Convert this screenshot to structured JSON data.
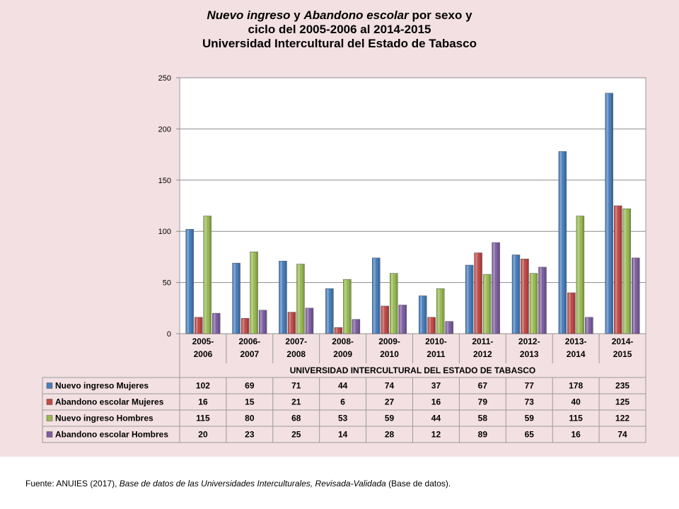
{
  "title": {
    "line1_part1": "Nuevo ingreso",
    "line1_part2": " y ",
    "line1_part3": "Abandono escolar",
    "line1_part4": " por sexo y",
    "line2": "ciclo del 2005-2006 al 2014-2015",
    "line3": "Universidad Intercultural del Estado de Tabasco"
  },
  "source": {
    "prefix": "Fuente: ANUIES (2017), ",
    "italic": "Base de datos de las Universidades Interculturales, Revisada-Validada",
    "suffix": " (Base de datos)."
  },
  "chart_data": {
    "type": "bar",
    "categories": [
      [
        "2005-",
        "2006"
      ],
      [
        "2006-",
        "2007"
      ],
      [
        "2007-",
        "2008"
      ],
      [
        "2008-",
        "2009"
      ],
      [
        "2009-",
        "2010"
      ],
      [
        "2010-",
        "2011"
      ],
      [
        "2011-",
        "2012"
      ],
      [
        "2012-",
        "2013"
      ],
      [
        "2013-",
        "2014"
      ],
      [
        "2014-",
        "2015"
      ]
    ],
    "xlabel": "UNIVERSIDAD INTERCULTURAL DEL ESTADO DE TABASCO",
    "ylim": [
      0,
      250
    ],
    "yticks": [
      0,
      50,
      100,
      150,
      200,
      250
    ],
    "grid": true,
    "legend": "data-table-below",
    "series": [
      {
        "name": "Nuevo ingreso Mujeres",
        "color": "#4a7ebb",
        "values": [
          102,
          69,
          71,
          44,
          74,
          37,
          67,
          77,
          178,
          235
        ]
      },
      {
        "name": "Abandono escolar Mujeres",
        "color": "#be4b48",
        "values": [
          16,
          15,
          21,
          6,
          27,
          16,
          79,
          73,
          40,
          125
        ]
      },
      {
        "name": "Nuevo ingreso Hombres",
        "color": "#98b954",
        "values": [
          115,
          80,
          68,
          53,
          59,
          44,
          58,
          59,
          115,
          122
        ]
      },
      {
        "name": "Abandono escolar Hombres",
        "color": "#7d60a0",
        "values": [
          20,
          23,
          25,
          14,
          28,
          12,
          89,
          65,
          16,
          74
        ]
      }
    ]
  }
}
